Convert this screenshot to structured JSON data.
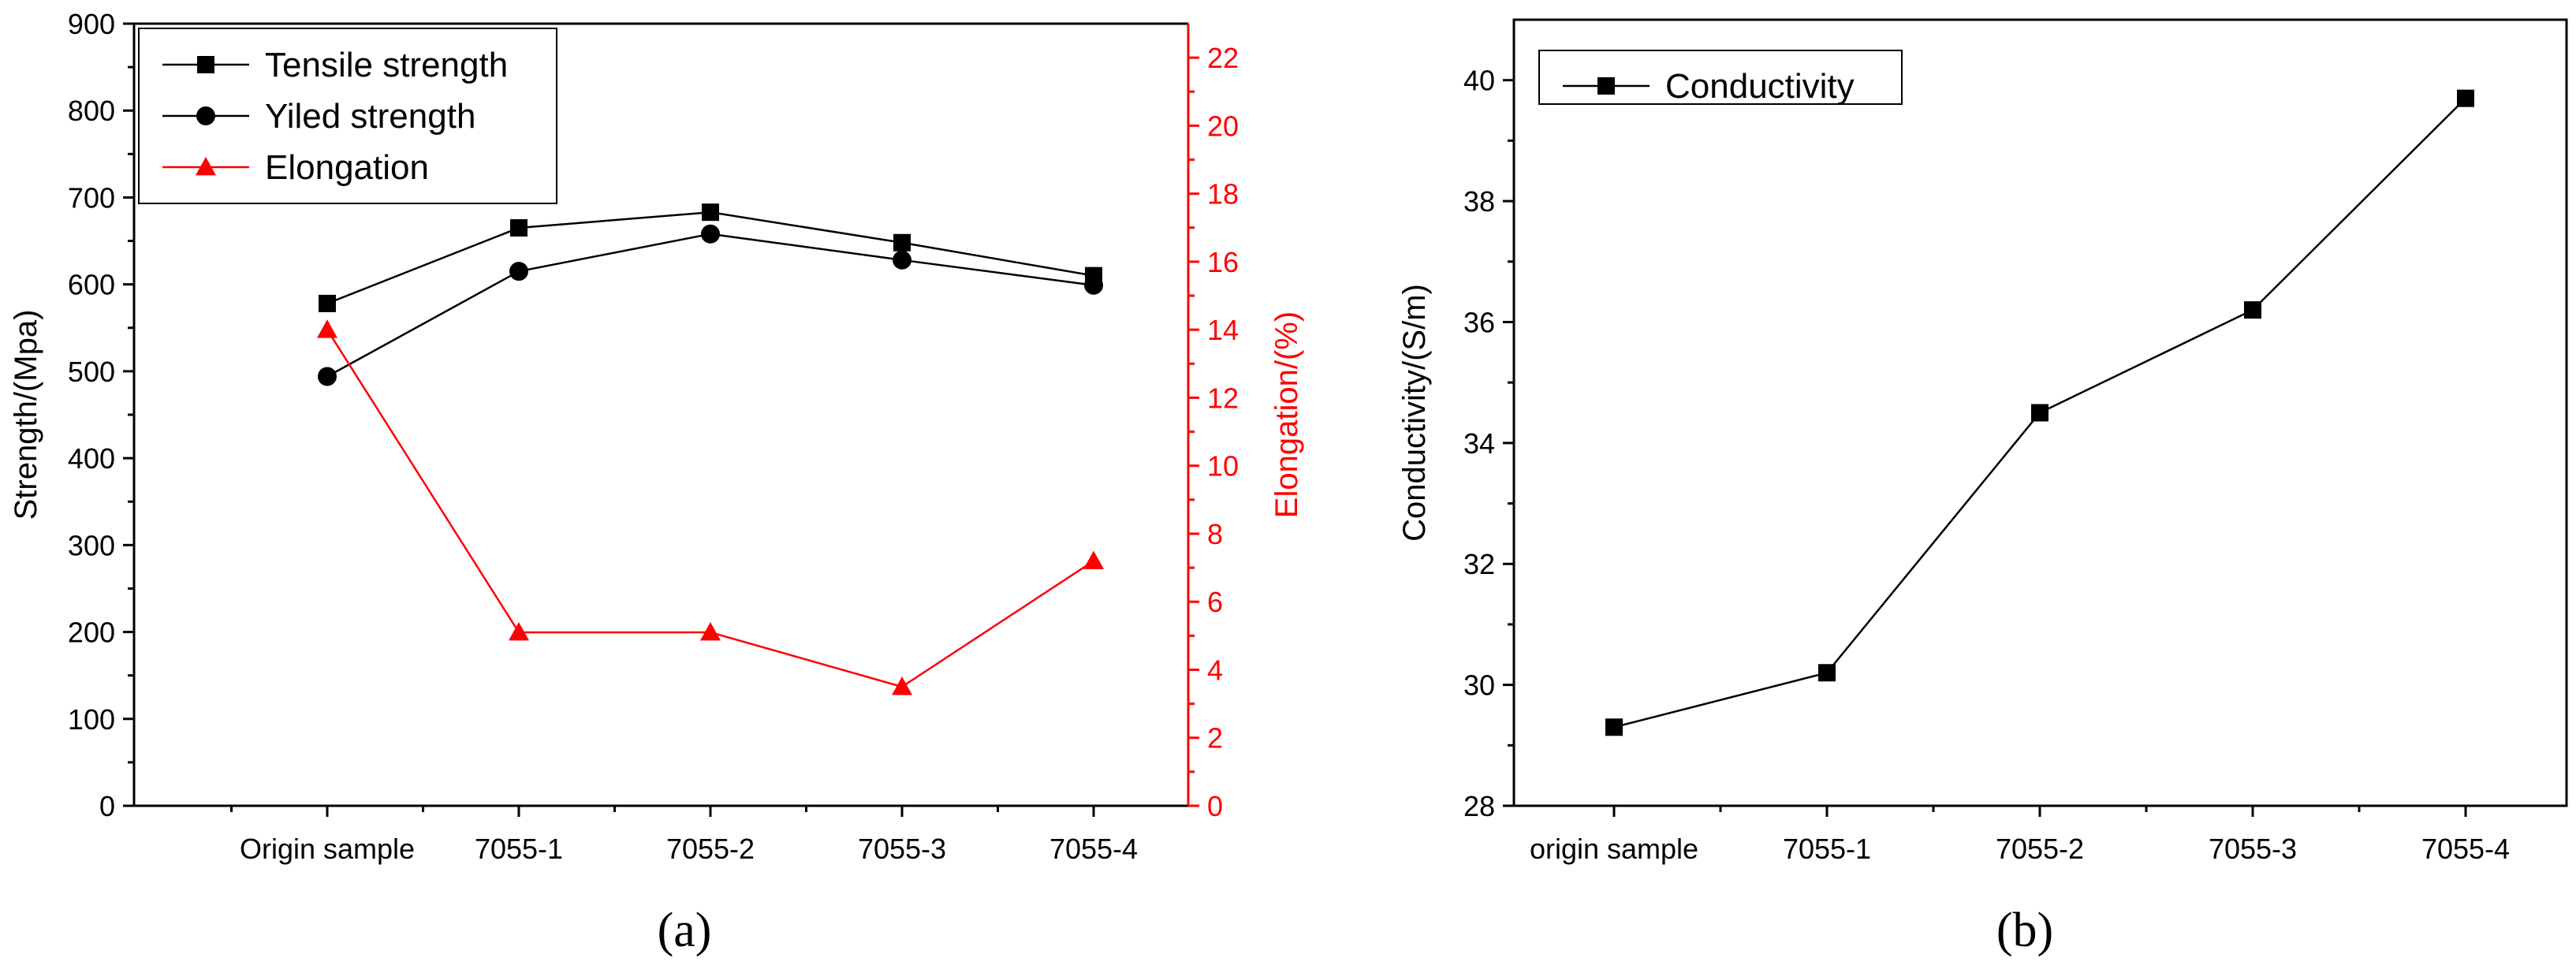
{
  "chart_data": [
    {
      "type": "line",
      "panel_label": "(a)",
      "categories": [
        "Origin sample",
        "7055-1",
        "7055-2",
        "7055-3",
        "7055-4"
      ],
      "series": [
        {
          "name": "Tensile strength",
          "axis": "left",
          "marker": "square",
          "color": "#000000",
          "values": [
            578,
            665,
            683,
            648,
            610
          ]
        },
        {
          "name": "Yiled strength",
          "axis": "left",
          "marker": "circle",
          "color": "#000000",
          "values": [
            494,
            615,
            658,
            628,
            599
          ]
        },
        {
          "name": "Elongation",
          "axis": "right",
          "marker": "triangle",
          "color": "#ff0000",
          "values": [
            14.0,
            5.1,
            5.1,
            3.5,
            7.2
          ]
        }
      ],
      "ylabel": "Strength/(Mpa)",
      "ylim": [
        0,
        900
      ],
      "yticks": [
        0,
        100,
        200,
        300,
        400,
        500,
        600,
        700,
        800,
        900
      ],
      "y2label": "Elongation/(%)",
      "y2lim": [
        0,
        23
      ],
      "y2ticks": [
        0,
        2,
        4,
        6,
        8,
        10,
        12,
        14,
        16,
        18,
        20,
        22
      ],
      "y2color": "#ff0000",
      "legend_position": "top-left"
    },
    {
      "type": "line",
      "panel_label": "(b)",
      "categories": [
        "origin sample",
        "7055-1",
        "7055-2",
        "7055-3",
        "7055-4"
      ],
      "series": [
        {
          "name": "Conductivity",
          "axis": "left",
          "marker": "square",
          "color": "#000000",
          "values": [
            29.3,
            30.2,
            34.5,
            36.2,
            39.7
          ]
        }
      ],
      "ylabel": "Conductivity/(S/m)",
      "ylim": [
        28,
        41
      ],
      "yticks": [
        28,
        30,
        32,
        34,
        36,
        38,
        40
      ],
      "legend_position": "top-left"
    }
  ]
}
